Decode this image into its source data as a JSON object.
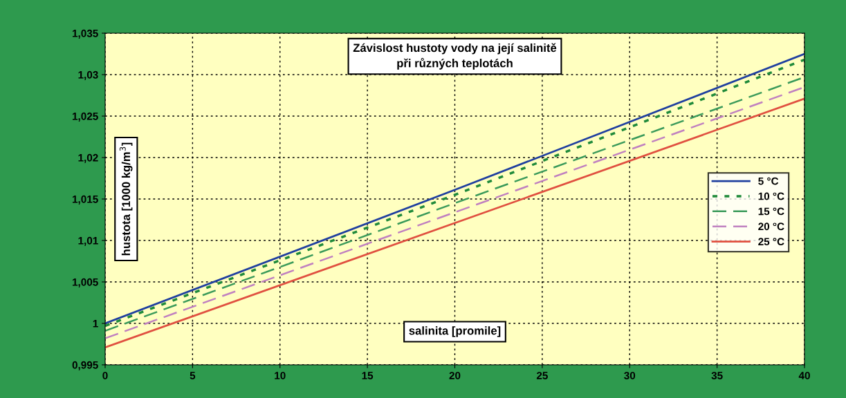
{
  "chart_data": {
    "type": "line",
    "title": "Závislost hustoty vody na její salinitě\npři různých teplotách",
    "xlabel": "salinita [promile]",
    "ylabel": "hustota [1000 kg/m$^{3}$]",
    "xlim": [
      0,
      40
    ],
    "xticks": [
      0,
      5,
      10,
      15,
      20,
      25,
      30,
      35,
      40
    ],
    "ylim": [
      0.995,
      1.035
    ],
    "yticks": [
      {
        "value": 0.995,
        "label": "0,995"
      },
      {
        "value": 1.0,
        "label": "1"
      },
      {
        "value": 1.005,
        "label": "1,005"
      },
      {
        "value": 1.01,
        "label": "1,01"
      },
      {
        "value": 1.015,
        "label": "1,015"
      },
      {
        "value": 1.02,
        "label": "1,02"
      },
      {
        "value": 1.025,
        "label": "1,025"
      },
      {
        "value": 1.03,
        "label": "1,03"
      },
      {
        "value": 1.035,
        "label": "1,035"
      }
    ],
    "grid": true,
    "legend": "right",
    "marker": "none",
    "x": [
      0,
      20,
      40
    ],
    "series": [
      {
        "name": "5 °C",
        "color": "#1f3f9f",
        "line_style": "solid",
        "values": [
          1.0,
          1.0161,
          1.0325
        ]
      },
      {
        "name": "10 °C",
        "color": "#1f8a3a",
        "line_style": "dotted",
        "values": [
          0.9997,
          1.0155,
          1.0318
        ]
      },
      {
        "name": "15 °C",
        "color": "#3a9a5a",
        "line_style": "dashed",
        "values": [
          0.9991,
          1.0145,
          1.0297
        ]
      },
      {
        "name": "20 °C",
        "color": "#c080c0",
        "line_style": "dashed",
        "values": [
          0.9982,
          1.0134,
          1.0285
        ]
      },
      {
        "name": "25 °C",
        "color": "#e05040",
        "line_style": "solid",
        "values": [
          0.9971,
          1.0121,
          1.0271
        ]
      }
    ]
  }
}
